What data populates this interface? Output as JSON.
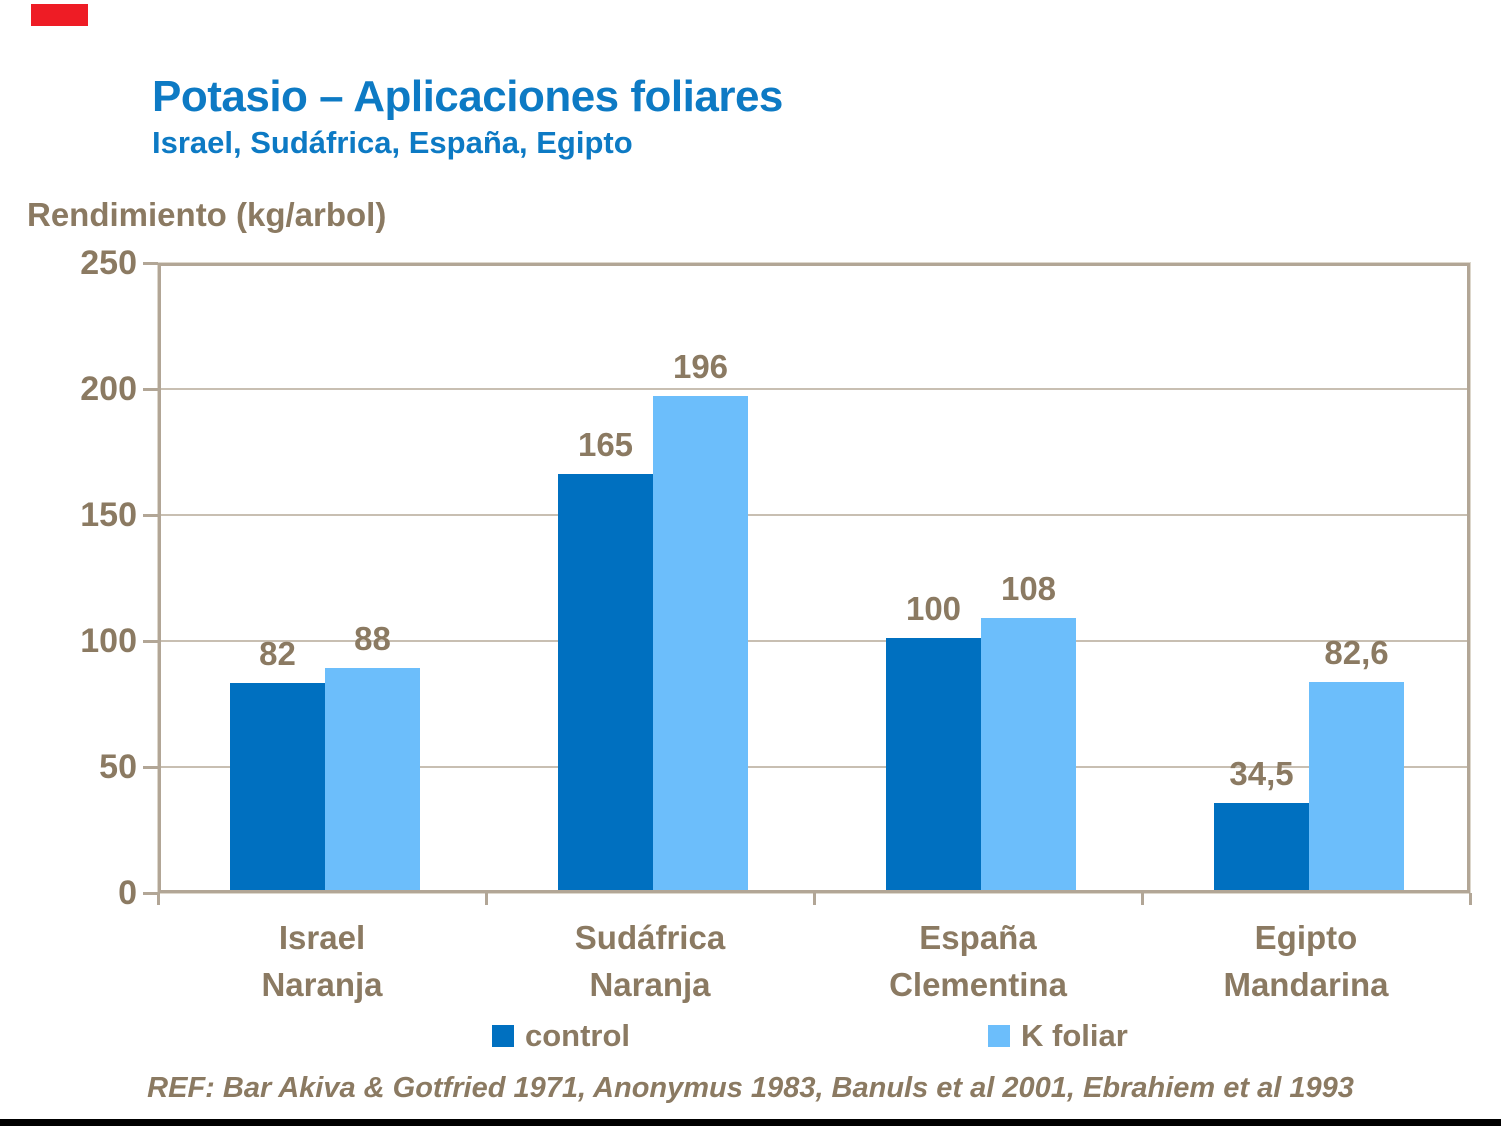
{
  "slide": {
    "title": "Potasio – Aplicaciones foliares",
    "subtitle": "Israel, Sudáfrica, España, Egipto",
    "footer": "REF: Bar Akiva & Gotfried 1971, Anonymus 1983, Banuls et al 2001, Ebrahiem et al 1993",
    "marker_color": "#ee1c25",
    "text_color": "#8b7a62",
    "title_color": "#0d7ac4"
  },
  "chart_data": {
    "type": "bar",
    "title": "Potasio – Aplicaciones foliares",
    "ylabel": "Rendimiento (kg/arbol)",
    "xlabel": "",
    "ylim": [
      0,
      250
    ],
    "yticks": [
      0,
      50,
      100,
      150,
      200,
      250
    ],
    "grid": true,
    "legend_position": "bottom",
    "categories": [
      [
        "Israel",
        "Naranja"
      ],
      [
        "Sudáfrica",
        "Naranja"
      ],
      [
        "España",
        "Clementina"
      ],
      [
        "Egipto",
        "Mandarina"
      ]
    ],
    "series": [
      {
        "name": "control",
        "color": "#0070c0",
        "values": [
          82,
          165,
          100,
          34.5
        ],
        "labels": [
          "82",
          "165",
          "100",
          "34,5"
        ]
      },
      {
        "name": "K foliar",
        "color": "#6cbefb",
        "values": [
          88,
          196,
          108,
          82.6
        ],
        "labels": [
          "88",
          "196",
          "108",
          "82,6"
        ]
      }
    ],
    "axis_color": "#b2a696",
    "gridline_color": "#c8bfb2"
  }
}
